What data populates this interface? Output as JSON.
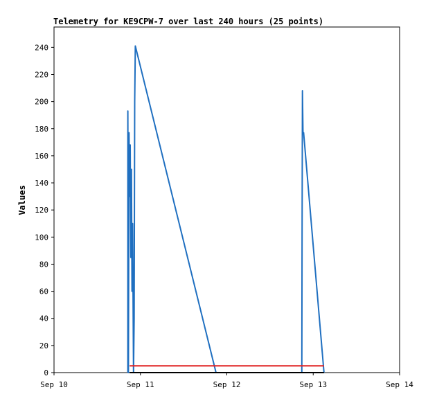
{
  "chart_data": {
    "type": "line",
    "title": "Telemetry for KE9CPW-7 over last 240 hours (25 points)",
    "xlabel": "",
    "ylabel": "Values",
    "x_ticks": [
      "Sep 10",
      "Sep 11",
      "Sep 12",
      "Sep 13",
      "Sep 14"
    ],
    "xlim": [
      "Sep 10",
      "Sep 14"
    ],
    "y_ticks": [
      0,
      20,
      40,
      60,
      80,
      100,
      120,
      140,
      160,
      180,
      200,
      220,
      240
    ],
    "ylim": [
      0,
      255
    ],
    "grid": false,
    "legend": "none",
    "series": [
      {
        "color": "#1f6fc0",
        "points": [
          {
            "x": "2024-09-10 20:30",
            "y": 0
          },
          {
            "x": "2024-09-10 20:30",
            "y": 193
          },
          {
            "x": "2024-09-10 20:40",
            "y": 0
          },
          {
            "x": "2024-09-10 20:50",
            "y": 177
          },
          {
            "x": "2024-09-10 21:00",
            "y": 130
          },
          {
            "x": "2024-09-10 21:10",
            "y": 168
          },
          {
            "x": "2024-09-10 21:20",
            "y": 85
          },
          {
            "x": "2024-09-10 21:30",
            "y": 150
          },
          {
            "x": "2024-09-10 21:40",
            "y": 60
          },
          {
            "x": "2024-09-10 21:50",
            "y": 110
          },
          {
            "x": "2024-09-10 22:05",
            "y": 0
          },
          {
            "x": "2024-09-10 22:15",
            "y": 40
          },
          {
            "x": "2024-09-10 22:25",
            "y": 200
          },
          {
            "x": "2024-09-10 22:35",
            "y": 241
          },
          {
            "x": "2024-09-11 21:00",
            "y": 0
          },
          {
            "x": "2024-09-12 20:50",
            "y": 0
          },
          {
            "x": "2024-09-12 20:55",
            "y": 105
          },
          {
            "x": "2024-09-12 21:00",
            "y": 208
          },
          {
            "x": "2024-09-12 21:10",
            "y": 177
          },
          {
            "x": "2024-09-12 21:20",
            "y": 177
          },
          {
            "x": "2024-09-13 03:00",
            "y": 0
          }
        ]
      },
      {
        "color": "#e02020",
        "points": [
          {
            "x": "2024-09-10 21:00",
            "y": 5
          },
          {
            "x": "2024-09-13 03:00",
            "y": 5
          }
        ]
      },
      {
        "color": "#000000",
        "points": [
          {
            "x": "2024-09-10 21:00",
            "y": 0
          },
          {
            "x": "2024-09-13 03:00",
            "y": 0
          }
        ]
      }
    ]
  }
}
